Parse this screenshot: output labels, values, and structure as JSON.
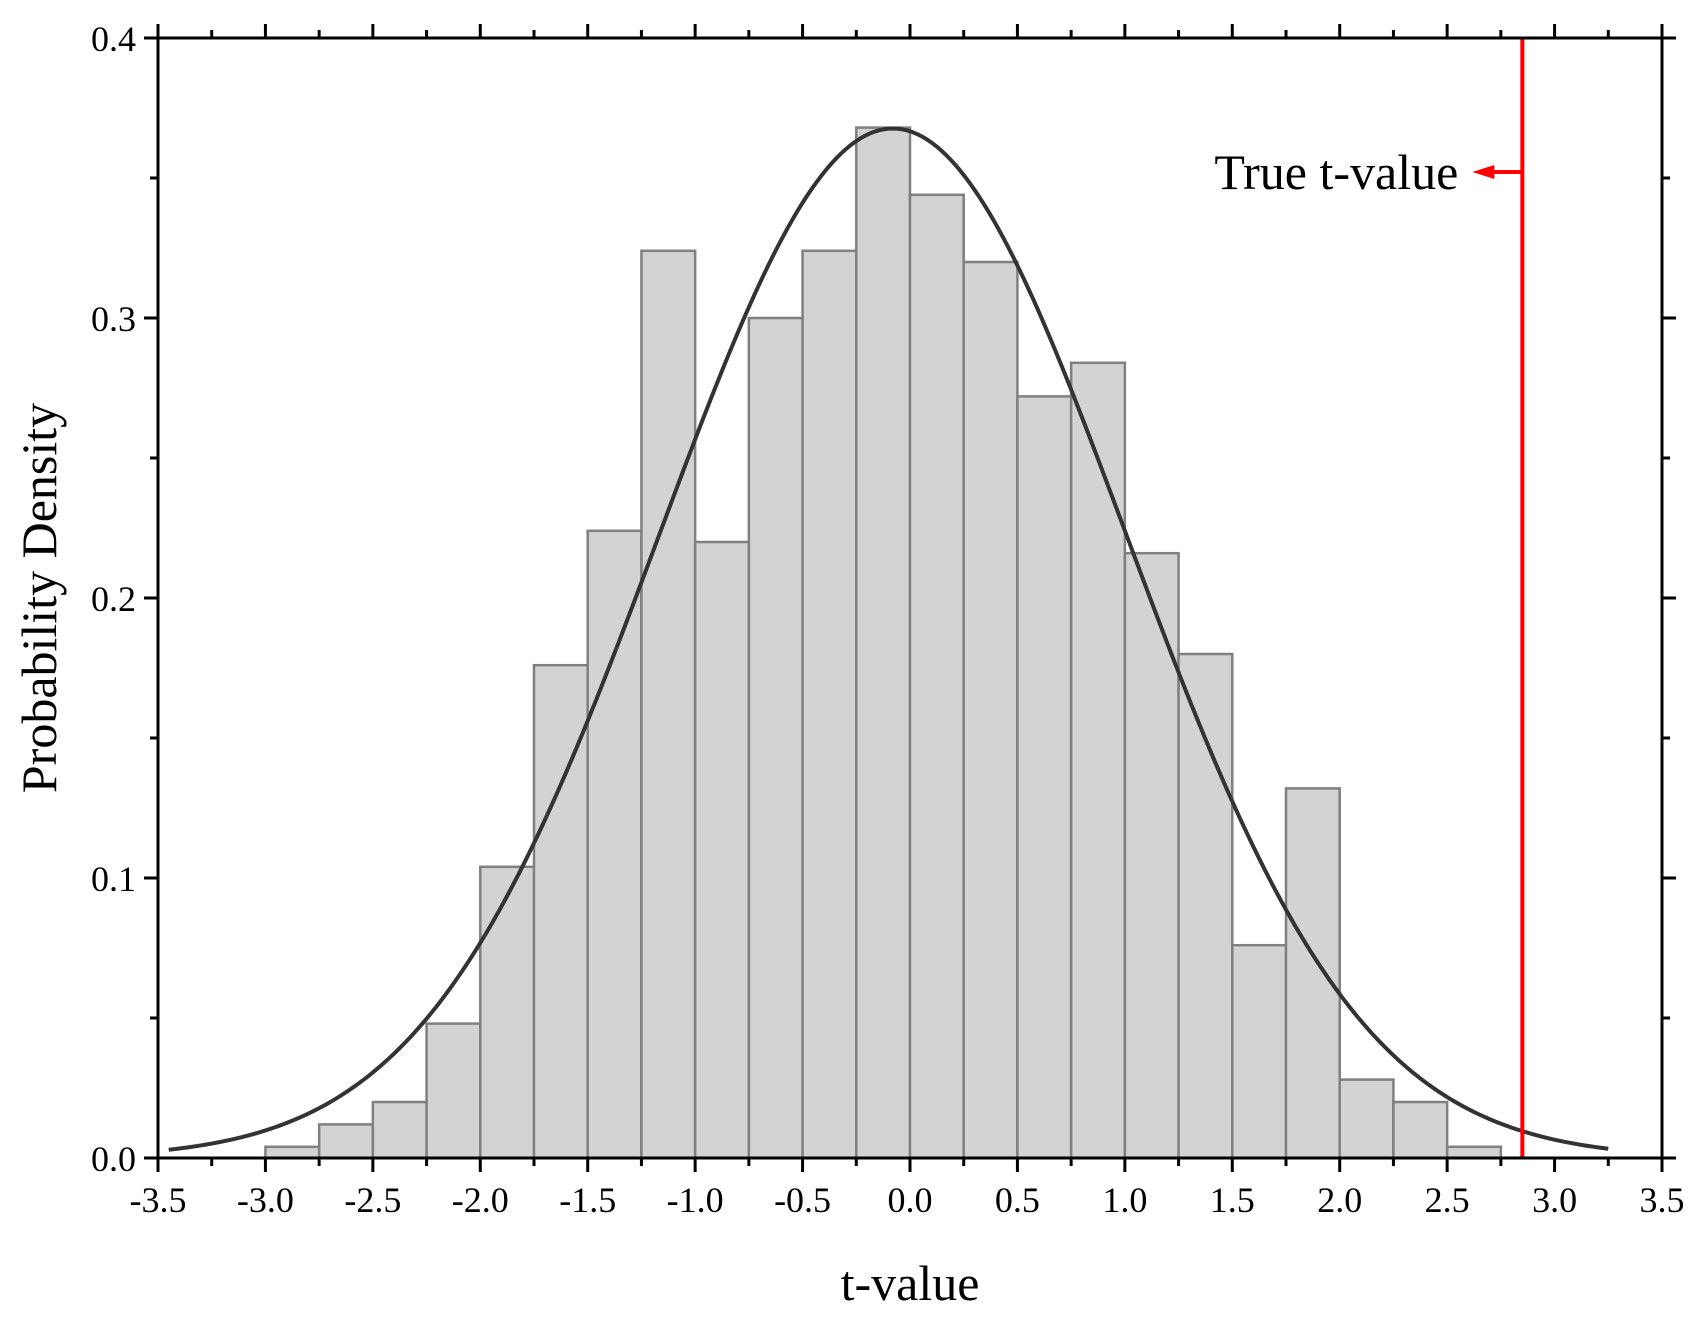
{
  "chart_data": {
    "type": "bar",
    "xlabel": "t-value",
    "ylabel": "Probability Density",
    "xlim": [
      -3.5,
      3.5
    ],
    "ylim": [
      0,
      0.4
    ],
    "x_ticks": [
      "-3.5",
      "-3.0",
      "-2.5",
      "-2.0",
      "-1.5",
      "-1.0",
      "-0.5",
      "0.0",
      "0.5",
      "1.0",
      "1.5",
      "2.0",
      "2.5",
      "3.0",
      "3.5"
    ],
    "y_ticks": [
      "0.0",
      "0.1",
      "0.2",
      "0.3",
      "0.4"
    ],
    "bin_width": 0.25,
    "bins": [
      {
        "x0": -3.0,
        "density": 0.004
      },
      {
        "x0": -2.75,
        "density": 0.012
      },
      {
        "x0": -2.5,
        "density": 0.02
      },
      {
        "x0": -2.25,
        "density": 0.048
      },
      {
        "x0": -2.0,
        "density": 0.104
      },
      {
        "x0": -1.75,
        "density": 0.176
      },
      {
        "x0": -1.5,
        "density": 0.224
      },
      {
        "x0": -1.25,
        "density": 0.324
      },
      {
        "x0": -1.0,
        "density": 0.22
      },
      {
        "x0": -0.75,
        "density": 0.3
      },
      {
        "x0": -0.5,
        "density": 0.324
      },
      {
        "x0": -0.25,
        "density": 0.368
      },
      {
        "x0": 0.0,
        "density": 0.344
      },
      {
        "x0": 0.25,
        "density": 0.32
      },
      {
        "x0": 0.5,
        "density": 0.272
      },
      {
        "x0": 0.75,
        "density": 0.284
      },
      {
        "x0": 1.0,
        "density": 0.216
      },
      {
        "x0": 1.25,
        "density": 0.18
      },
      {
        "x0": 1.5,
        "density": 0.076
      },
      {
        "x0": 1.75,
        "density": 0.132
      },
      {
        "x0": 2.0,
        "density": 0.028
      },
      {
        "x0": 2.25,
        "density": 0.02
      },
      {
        "x0": 2.5,
        "density": 0.004
      }
    ],
    "fit_curve": {
      "type": "normal",
      "mean": -0.08,
      "sd": 1.085,
      "x_range": [
        -3.45,
        3.25
      ]
    },
    "reference_line": {
      "x": 2.85,
      "label": "True t-value",
      "color": "#ff0000"
    },
    "colors": {
      "bar_fill": "#d3d3d3",
      "bar_stroke": "#808080",
      "curve": "#333333"
    }
  }
}
